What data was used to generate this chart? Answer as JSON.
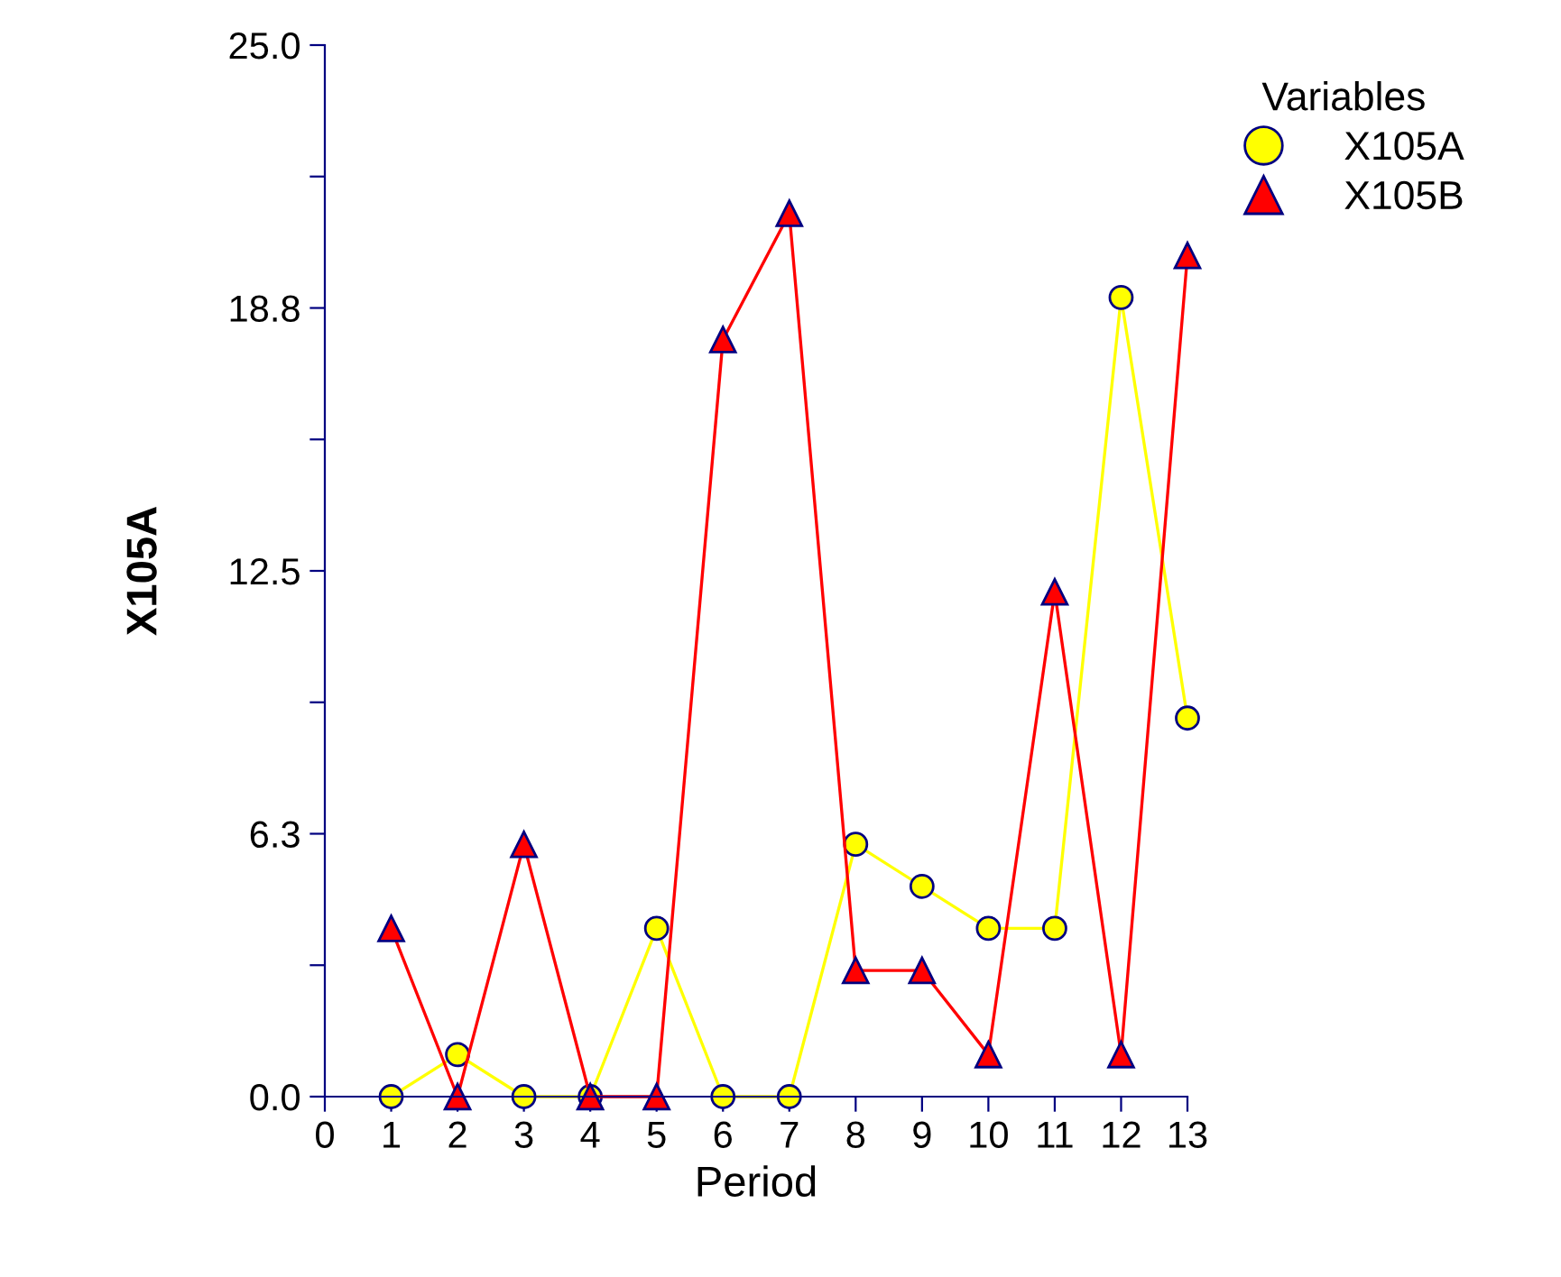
{
  "chart_data": {
    "type": "line",
    "xlabel": "Period",
    "ylabel": "X105A",
    "legend_title": "Variables",
    "legend": "top right",
    "grid": false,
    "line_style": "solid",
    "x": [
      1,
      2,
      3,
      4,
      5,
      6,
      7,
      8,
      9,
      10,
      11,
      12,
      13
    ],
    "xlim": [
      0,
      13
    ],
    "xticks": [
      0,
      1,
      2,
      3,
      4,
      5,
      6,
      7,
      8,
      9,
      10,
      11,
      12,
      13
    ],
    "ylim": [
      0,
      25
    ],
    "yticks": [
      {
        "value": 0,
        "label": "0.0"
      },
      {
        "value": 3.125,
        "label": null
      },
      {
        "value": 6.25,
        "label": "6.3"
      },
      {
        "value": 9.375,
        "label": null
      },
      {
        "value": 12.5,
        "label": "12.5"
      },
      {
        "value": 15.625,
        "label": null
      },
      {
        "value": 18.75,
        "label": "18.8"
      },
      {
        "value": 21.875,
        "label": null
      },
      {
        "value": 25,
        "label": "25.0"
      }
    ],
    "series": [
      {
        "name": "X105A",
        "color": "#ffff00",
        "marker": "circle",
        "values": [
          0,
          1,
          0,
          0,
          4,
          0,
          0,
          6,
          5,
          4,
          4,
          19,
          9
        ]
      },
      {
        "name": "X105B",
        "color": "#ff0000",
        "marker": "triangle",
        "values": [
          4,
          0,
          6,
          0,
          0,
          18,
          21,
          3,
          3,
          1,
          12,
          1,
          20
        ]
      }
    ]
  }
}
